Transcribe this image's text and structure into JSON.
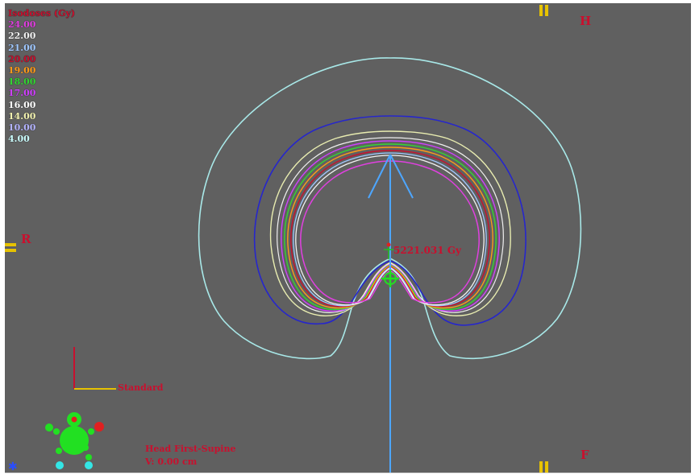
{
  "legend": {
    "title": "Isodoses (Gy)",
    "title_color": "#c8102e",
    "items": [
      {
        "label": "24.00",
        "color": "#e040e0"
      },
      {
        "label": "22.00",
        "color": "#f2f2f2"
      },
      {
        "label": "21.00",
        "color": "#a0c8ff"
      },
      {
        "label": "20.00",
        "color": "#c8102e"
      },
      {
        "label": "19.00",
        "color": "#ff9a1a"
      },
      {
        "label": "18.00",
        "color": "#33d633"
      },
      {
        "label": "17.00",
        "color": "#d040ff"
      },
      {
        "label": "16.00",
        "color": "#ffffff"
      },
      {
        "label": "14.00",
        "color": "#f2f2b0"
      },
      {
        "label": "10.00",
        "color": "#b4b4ff"
      },
      {
        "label": "4.00",
        "color": "#ccffff"
      }
    ]
  },
  "orientation": {
    "head": "H",
    "feet": "F",
    "right": "R"
  },
  "dose_point": {
    "label": "5221.031 Gy"
  },
  "axes_label": "Standard",
  "patient": {
    "position": "Head First-Supine",
    "v_offset": "V: 0.00 cm"
  },
  "colors": {
    "viewport_bg": "#606060",
    "marker_yellow": "#e6c200",
    "beam_blue": "#4da6ff",
    "isodose_blue": "#2626cc",
    "isodose_outer": "#a8e8e8",
    "label_red": "#c8102e",
    "mannequin_green": "#22e022"
  }
}
